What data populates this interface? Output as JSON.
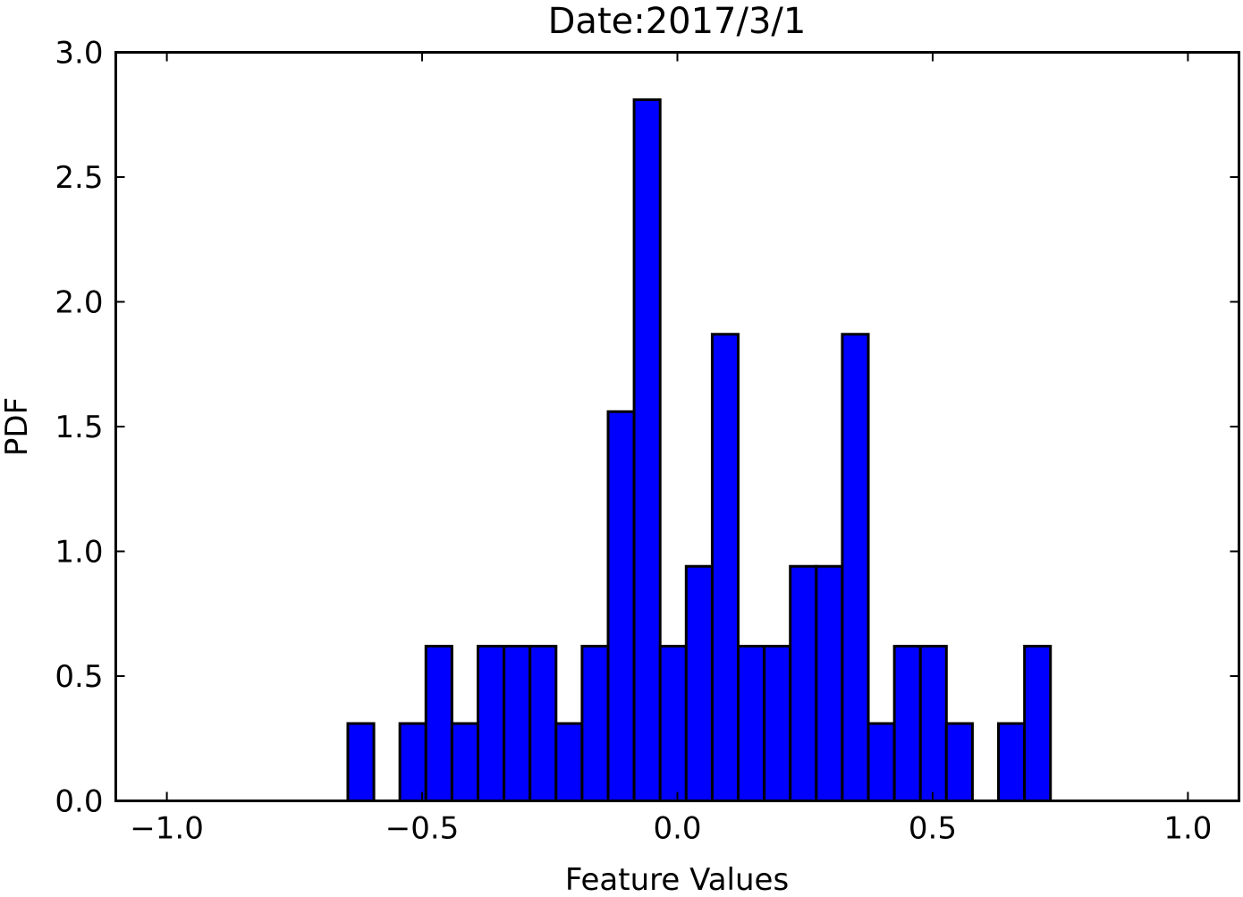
{
  "chart_data": {
    "type": "bar",
    "title": "Date:2017/3/1",
    "xlabel": "Feature Values",
    "ylabel": "PDF",
    "xlim": [
      -1.1,
      1.1
    ],
    "ylim": [
      0,
      3.0
    ],
    "xticks": [
      -1.0,
      -0.5,
      0.0,
      0.5,
      1.0
    ],
    "xtick_labels": [
      "−1.0",
      "−0.5",
      "0.0",
      "0.5",
      "1.0"
    ],
    "yticks": [
      0.0,
      0.5,
      1.0,
      1.5,
      2.0,
      2.5,
      3.0
    ],
    "ytick_labels": [
      "0.0",
      "0.5",
      "1.0",
      "1.5",
      "2.0",
      "2.5",
      "3.0"
    ],
    "grid": false,
    "legend": "none",
    "bar_color": "#0000ff",
    "edge_color": "#000000",
    "bins": [
      {
        "x0": -0.6455,
        "x1": -0.5945,
        "value": 0.31
      },
      {
        "x0": -0.5436,
        "x1": -0.4926,
        "value": 0.31
      },
      {
        "x0": -0.4926,
        "x1": -0.4416,
        "value": 0.62
      },
      {
        "x0": -0.4416,
        "x1": -0.3906,
        "value": 0.31
      },
      {
        "x0": -0.3906,
        "x1": -0.3396,
        "value": 0.62
      },
      {
        "x0": -0.3396,
        "x1": -0.2887,
        "value": 0.62
      },
      {
        "x0": -0.2887,
        "x1": -0.2377,
        "value": 0.62
      },
      {
        "x0": -0.2377,
        "x1": -0.1867,
        "value": 0.31
      },
      {
        "x0": -0.1867,
        "x1": -0.1357,
        "value": 0.62
      },
      {
        "x0": -0.1357,
        "x1": -0.0848,
        "value": 1.56
      },
      {
        "x0": -0.0848,
        "x1": -0.0338,
        "value": 2.81
      },
      {
        "x0": -0.0338,
        "x1": 0.0172,
        "value": 0.62
      },
      {
        "x0": 0.0172,
        "x1": 0.0682,
        "value": 0.94
      },
      {
        "x0": 0.0682,
        "x1": 0.1191,
        "value": 1.87
      },
      {
        "x0": 0.1191,
        "x1": 0.1701,
        "value": 0.62
      },
      {
        "x0": 0.1701,
        "x1": 0.2211,
        "value": 0.62
      },
      {
        "x0": 0.2211,
        "x1": 0.2721,
        "value": 0.94
      },
      {
        "x0": 0.2721,
        "x1": 0.323,
        "value": 0.94
      },
      {
        "x0": 0.323,
        "x1": 0.374,
        "value": 1.87
      },
      {
        "x0": 0.374,
        "x1": 0.425,
        "value": 0.31
      },
      {
        "x0": 0.425,
        "x1": 0.476,
        "value": 0.62
      },
      {
        "x0": 0.476,
        "x1": 0.5269,
        "value": 0.62
      },
      {
        "x0": 0.5269,
        "x1": 0.5779,
        "value": 0.31
      },
      {
        "x0": 0.6289,
        "x1": 0.6799,
        "value": 0.31
      },
      {
        "x0": 0.6799,
        "x1": 0.7308,
        "value": 0.62
      }
    ]
  }
}
